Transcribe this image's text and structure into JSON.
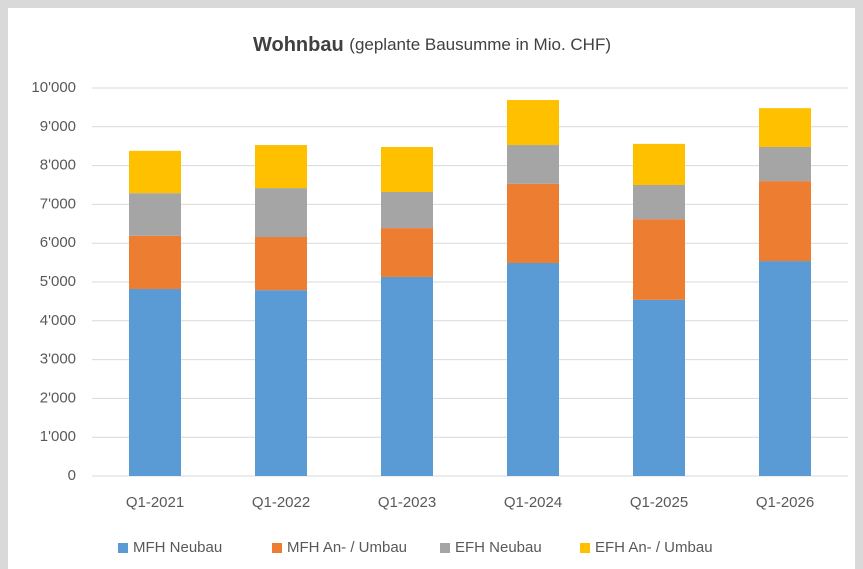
{
  "chart_data": {
    "type": "stacked_bar",
    "title": "Wohnbau",
    "subtitle": "(geplante Bausumme in Mio. CHF)",
    "categories": [
      "Q1-2021",
      "Q1-2022",
      "Q1-2023",
      "Q1-2024",
      "Q1-2025",
      "Q1-2026"
    ],
    "series": [
      {
        "name": "MFH Neubau",
        "color": "#5b9bd5",
        "values": [
          4820,
          4790,
          5130,
          5490,
          4540,
          5540
        ]
      },
      {
        "name": "MFH An- / Umbau",
        "color": "#ed7d31",
        "values": [
          1370,
          1370,
          1260,
          2040,
          2080,
          2060
        ]
      },
      {
        "name": "EFH Neubau",
        "color": "#a5a5a5",
        "values": [
          1100,
          1260,
          930,
          1000,
          880,
          880
        ]
      },
      {
        "name": "EFH An- / Umbau",
        "color": "#ffc000",
        "values": [
          1090,
          1110,
          1160,
          1160,
          1060,
          1000
        ]
      }
    ],
    "ylim": [
      0,
      10000
    ],
    "yticks": [
      0,
      {
        "value": 1000,
        "label": "1'000"
      },
      {
        "value": 2000,
        "label": "2'000"
      },
      {
        "value": 3000,
        "label": "3'000"
      },
      {
        "value": 4000,
        "label": "4'000"
      },
      {
        "value": 5000,
        "label": "5'000"
      },
      {
        "value": 6000,
        "label": "6'000"
      },
      {
        "value": 7000,
        "label": "7'000"
      },
      {
        "value": 8000,
        "label": "8'000"
      },
      {
        "value": 9000,
        "label": "9'000"
      },
      {
        "value": 10000,
        "label": "10'000"
      }
    ],
    "grid": true,
    "legend": "bottom"
  }
}
